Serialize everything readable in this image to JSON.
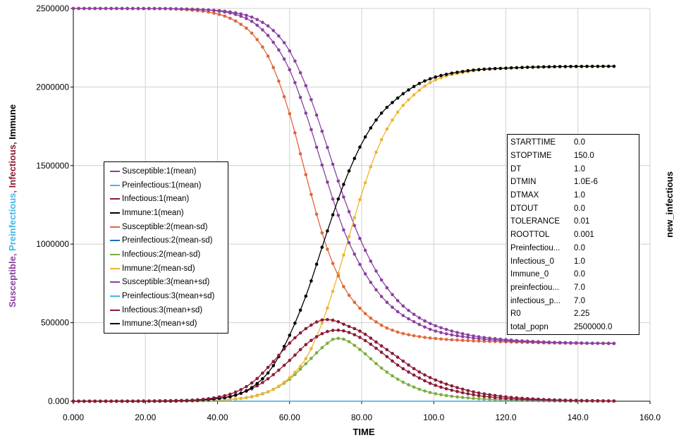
{
  "chart_data": {
    "type": "line",
    "xlabel": "TIME",
    "ylabel_parts": [
      {
        "text": "Susceptible",
        "color": "#8b3fa0"
      },
      {
        "text": ", ",
        "color": "#8b3fa0"
      },
      {
        "text": "Preinfectious",
        "color": "#45b6e8"
      },
      {
        "text": ", ",
        "color": "#8b3fa0"
      },
      {
        "text": "Infectious",
        "color": "#8c1a35"
      },
      {
        "text": ", ",
        "color": "#8c1a35"
      },
      {
        "text": "Immune",
        "color": "#000000"
      }
    ],
    "right_label": "new_infectious",
    "xlim": [
      0,
      160
    ],
    "ylim": [
      0,
      2500000
    ],
    "x_ticks": [
      0,
      20,
      40,
      60,
      80,
      100,
      120,
      140,
      160
    ],
    "x_tick_labels": [
      "0.000",
      "20.00",
      "40.00",
      "60.00",
      "80.00",
      "100.0",
      "120.0",
      "140.0",
      "160.0"
    ],
    "y_ticks": [
      0,
      500000,
      1000000,
      1500000,
      2000000,
      2500000
    ],
    "y_tick_labels": [
      "0.000",
      "500000",
      "1000000",
      "1500000",
      "2000000",
      "2500000"
    ],
    "grid": true,
    "legend_position": "left-middle",
    "series": [
      {
        "name": "Susceptible:1(mean)",
        "color": "#8b3fa0",
        "x": [
          0,
          20,
          30,
          40,
          45,
          50,
          55,
          60,
          65,
          70,
          75,
          80,
          85,
          90,
          95,
          100,
          110,
          120,
          130,
          140,
          150
        ],
        "y": [
          2500000,
          2499500,
          2497000,
          2484000,
          2462000,
          2410000,
          2300000,
          2110000,
          1800000,
          1430000,
          1090000,
          850000,
          680000,
          570000,
          500000,
          450000,
          405000,
          385000,
          375000,
          370000,
          368000
        ]
      },
      {
        "name": "Preinfectious:1(mean)",
        "color": "#45b6e8",
        "markers": false,
        "x": [
          0,
          150
        ],
        "y": [
          0,
          0
        ]
      },
      {
        "name": "Infectious:1(mean)",
        "color": "#8c1a35",
        "x": [
          0,
          30,
          40,
          45,
          50,
          55,
          60,
          65,
          70,
          73,
          75,
          80,
          85,
          90,
          95,
          100,
          110,
          120,
          130,
          140,
          150
        ],
        "y": [
          0,
          3000,
          17000,
          40000,
          85000,
          160000,
          260000,
          370000,
          440000,
          452000,
          448000,
          400000,
          320000,
          230000,
          160000,
          105000,
          45000,
          18000,
          7000,
          3000,
          1000
        ]
      },
      {
        "name": "Immune:1(mean)",
        "color": "#000000",
        "x": [
          0,
          20,
          30,
          40,
          45,
          50,
          55,
          60,
          65,
          70,
          75,
          80,
          85,
          90,
          95,
          100,
          110,
          120,
          130,
          140,
          150
        ],
        "y": [
          0,
          300,
          3000,
          17000,
          38000,
          95000,
          210000,
          420000,
          700000,
          1050000,
          1380000,
          1640000,
          1820000,
          1930000,
          2010000,
          2060000,
          2105000,
          2120000,
          2128000,
          2131000,
          2132000
        ]
      },
      {
        "name": "Susceptible:2(mean-sd)",
        "color": "#e0663a",
        "x": [
          0,
          20,
          30,
          40,
          45,
          50,
          55,
          60,
          65,
          70,
          75,
          80,
          85,
          90,
          95,
          100,
          110,
          120,
          130,
          140,
          150
        ],
        "y": [
          2500000,
          2499000,
          2494000,
          2465000,
          2420000,
          2330000,
          2150000,
          1830000,
          1400000,
          1000000,
          730000,
          580000,
          490000,
          440000,
          415000,
          400000,
          385000,
          378000,
          372000,
          369000,
          367000
        ]
      },
      {
        "name": "Preinfectious:2(mean-sd)",
        "color": "#1f6fb4",
        "markers": false,
        "x": [
          0,
          150
        ],
        "y": [
          0,
          0
        ]
      },
      {
        "name": "Infectious:2(mean-sd)",
        "color": "#7cad3c",
        "x": [
          0,
          30,
          40,
          45,
          50,
          55,
          60,
          65,
          70,
          73,
          75,
          80,
          85,
          90,
          95,
          100,
          110,
          120,
          130,
          140,
          150
        ],
        "y": [
          0,
          1000,
          6000,
          14000,
          32000,
          70000,
          140000,
          250000,
          360000,
          400000,
          395000,
          320000,
          220000,
          140000,
          85000,
          50000,
          20000,
          8000,
          3000,
          1000,
          500
        ]
      },
      {
        "name": "Immune:2(mean-sd)",
        "color": "#efb432",
        "x": [
          0,
          20,
          30,
          40,
          45,
          50,
          55,
          60,
          65,
          70,
          75,
          80,
          85,
          90,
          95,
          100,
          110,
          120,
          130,
          140,
          150
        ],
        "y": [
          0,
          100,
          1000,
          6000,
          14000,
          30000,
          70000,
          150000,
          290000,
          560000,
          930000,
          1320000,
          1640000,
          1840000,
          1960000,
          2040000,
          2100000,
          2120000,
          2127000,
          2130000,
          2131000
        ]
      },
      {
        "name": "Susceptible:3(mean+sd)",
        "color": "#8b3fa0",
        "x": [
          0,
          20,
          30,
          40,
          45,
          50,
          55,
          60,
          65,
          70,
          75,
          80,
          85,
          90,
          95,
          100,
          110,
          120,
          130,
          140,
          150
        ],
        "y": [
          2500000,
          2499500,
          2497000,
          2487000,
          2472000,
          2440000,
          2370000,
          2230000,
          1980000,
          1650000,
          1300000,
          1010000,
          790000,
          640000,
          545000,
          485000,
          420000,
          392000,
          378000,
          371000,
          368000
        ]
      },
      {
        "name": "Preinfectious:3(mean+sd)",
        "color": "#45b6e8",
        "markers": false,
        "x": [
          0,
          150
        ],
        "y": [
          0,
          0
        ]
      },
      {
        "name": "Infectious:3(mean+sd)",
        "color": "#8c1a35",
        "x": [
          0,
          30,
          40,
          45,
          50,
          55,
          60,
          65,
          70,
          73,
          75,
          80,
          85,
          90,
          95,
          100,
          110,
          120,
          130,
          140,
          150
        ],
        "y": [
          0,
          5000,
          25000,
          58000,
          125000,
          240000,
          370000,
          470000,
          520000,
          510000,
          490000,
          440000,
          360000,
          280000,
          200000,
          140000,
          65000,
          28000,
          12000,
          5000,
          2000
        ]
      },
      {
        "name": "Immune:3(mean+sd)",
        "color": "#000000",
        "x": [
          0,
          20,
          30,
          40,
          45,
          50,
          55,
          60,
          65,
          70,
          75,
          80,
          85,
          90,
          95,
          100,
          110,
          120,
          130,
          140,
          150
        ],
        "y": [
          0,
          500,
          5000,
          26000,
          55000,
          140000,
          320000,
          620000,
          960000,
          1330000,
          1640000,
          1860000,
          1980000,
          2050000,
          2085000,
          2105000,
          2122000,
          2128000,
          2130000,
          2131000,
          2132000
        ]
      }
    ]
  },
  "params": [
    {
      "name": "STARTTIME",
      "value": "0.0"
    },
    {
      "name": "STOPTIME",
      "value": "150.0"
    },
    {
      "name": "DT",
      "value": "1.0"
    },
    {
      "name": "DTMIN",
      "value": "1.0E-6"
    },
    {
      "name": "DTMAX",
      "value": "1.0"
    },
    {
      "name": "DTOUT",
      "value": "0.0"
    },
    {
      "name": "TOLERANCE",
      "value": "0.01"
    },
    {
      "name": "ROOTTOL",
      "value": "0.001"
    },
    {
      "name": "Preinfectiou...",
      "value": "0.0"
    },
    {
      "name": "Infectious_0",
      "value": "1.0"
    },
    {
      "name": "Immune_0",
      "value": "0.0"
    },
    {
      "name": "preinfectiou...",
      "value": "7.0"
    },
    {
      "name": "infectious_p...",
      "value": "7.0"
    },
    {
      "name": "R0",
      "value": "2.25"
    },
    {
      "name": "total_popn",
      "value": "2500000.0"
    }
  ]
}
